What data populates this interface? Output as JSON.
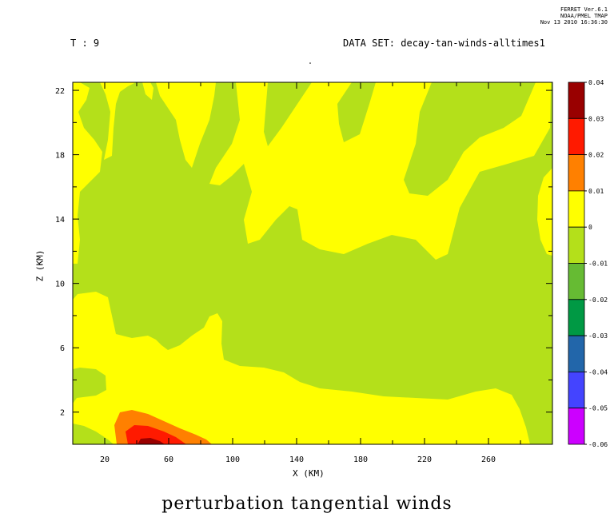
{
  "header": {
    "time_label": "T : 9",
    "dataset_label": "DATA SET: decay-tan-winds-alltimes1",
    "stamp_line1": "FERRET Ver.6.1",
    "stamp_line2": "NOAA/PMEL TMAP",
    "stamp_line3": "Nov 13 2010 16:36:30"
  },
  "chart_data": {
    "type": "heatmap",
    "title": "perturbation tangential winds",
    "xlabel": "X (KM)",
    "ylabel": "Z (KM)",
    "xlim": [
      0,
      300
    ],
    "ylim": [
      0,
      22.5
    ],
    "x_ticks": [
      20,
      60,
      100,
      140,
      180,
      220,
      260
    ],
    "y_ticks": [
      2,
      6,
      10,
      14,
      18,
      22
    ],
    "colorbar": {
      "levels": [
        0.04,
        0.03,
        0.02,
        0.01,
        0,
        -0.01,
        -0.02,
        -0.03,
        -0.04,
        -0.05,
        -0.06
      ],
      "labels": [
        "0.04",
        "0.03",
        "0.02",
        "0.01",
        "0",
        "-0.01",
        "-0.02",
        "-0.03",
        "-0.04",
        "-0.05",
        "-0.06"
      ],
      "colors": [
        "#990000",
        "#ff1a00",
        "#ff8000",
        "#ffff00",
        "#b4e01a",
        "#66bb33",
        "#009944",
        "#2266aa",
        "#4444ff",
        "#cc00ff"
      ]
    },
    "regions": [
      {
        "name": "background",
        "range": [
          -0.01,
          0
        ],
        "color": "#b4e01a"
      },
      {
        "name": "upper-left-lobe",
        "range": [
          0,
          0.01
        ],
        "x": [
          0,
          20
        ],
        "z": [
          8,
          22.5
        ]
      },
      {
        "name": "upper-mid-band",
        "range": [
          0,
          0.01
        ],
        "x": [
          85,
          280
        ],
        "z": [
          13,
          22.5
        ]
      },
      {
        "name": "low-level-band",
        "range": [
          0,
          0.01
        ],
        "x": [
          0,
          290
        ],
        "z": [
          0,
          9
        ]
      },
      {
        "name": "surface-max",
        "range": [
          0.01,
          0.04
        ],
        "x": [
          25,
          85
        ],
        "z": [
          0,
          2
        ],
        "peak_x": 48,
        "peak_z": 0.2
      }
    ]
  }
}
